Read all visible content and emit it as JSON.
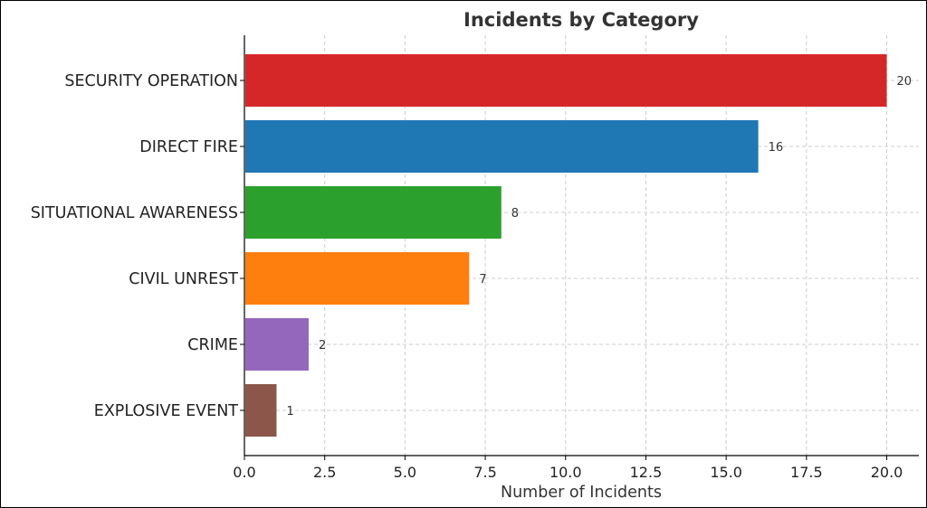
{
  "chart_data": {
    "type": "bar",
    "orientation": "horizontal",
    "title": "Incidents by Category",
    "xlabel": "Number of Incidents",
    "ylabel": "",
    "categories": [
      "SECURITY OPERATION",
      "DIRECT FIRE",
      "SITUATIONAL AWARENESS",
      "CIVIL UNREST",
      "CRIME",
      "EXPLOSIVE EVENT"
    ],
    "values": [
      20,
      16,
      8,
      7,
      2,
      1
    ],
    "colors": [
      "#d62728",
      "#1f77b4",
      "#2ca02c",
      "#ff7f0e",
      "#9467bd",
      "#8c564b"
    ],
    "data_labels": [
      "20",
      "16",
      "8",
      "7",
      "2",
      "1"
    ],
    "xlim": [
      0,
      21
    ],
    "xticks": [
      0,
      2.5,
      5,
      7.5,
      10,
      12.5,
      15,
      17.5,
      20
    ],
    "xtick_labels": [
      "0.0",
      "2.5",
      "5.0",
      "7.5",
      "10.0",
      "12.5",
      "15.0",
      "17.5",
      "20.0"
    ],
    "grid": true
  }
}
